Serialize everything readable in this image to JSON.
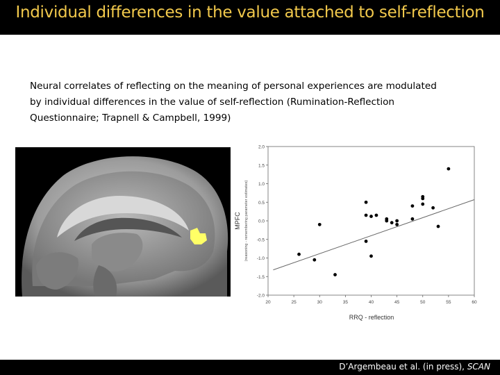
{
  "slide": {
    "title": "Individual differences in the value attached to self-reflection",
    "body_lines": [
      "Neural correlates of reflecting on the meaning of personal experiences are modulated",
      "by individual differences in the value of self-reflection  (Rumination-Reflection",
      "Questionnaire; Trapnell & Campbell, 1999)"
    ],
    "citation_main": "D’Argembeau et al. (in press), ",
    "citation_journal": "SCAN",
    "colors": {
      "title": "#f2c94c",
      "bars": "#000000",
      "activation": "#ffff66"
    }
  },
  "brain_image": {
    "icon": "sagittal-mri-brain-slice",
    "highlight": "mPFC activation cluster"
  },
  "chart_data": {
    "type": "scatter",
    "xlabel": "RRQ - reflection",
    "ylabel": "MPFC",
    "ylabel_sub": "(reasoning - remembering parameter estimates)",
    "xlim": [
      20,
      60
    ],
    "ylim": [
      -2.0,
      2.0
    ],
    "xticks": [
      "20",
      "25",
      "30",
      "35",
      "40",
      "45",
      "50",
      "55",
      "60"
    ],
    "yticks": [
      "-2.0",
      "-1.5",
      "-1.0",
      "-0.5",
      "0.0",
      "0.5",
      "1.0",
      "1.5",
      "2.0"
    ],
    "grid": false,
    "points": [
      {
        "x": 26,
        "y": -0.9
      },
      {
        "x": 29,
        "y": -1.05
      },
      {
        "x": 30,
        "y": -0.1
      },
      {
        "x": 33,
        "y": -1.45
      },
      {
        "x": 39,
        "y": 0.5
      },
      {
        "x": 39,
        "y": 0.15
      },
      {
        "x": 39,
        "y": -0.55
      },
      {
        "x": 40,
        "y": 0.12
      },
      {
        "x": 40,
        "y": -0.95
      },
      {
        "x": 41,
        "y": 0.15
      },
      {
        "x": 43,
        "y": 0.05
      },
      {
        "x": 43,
        "y": 0.0
      },
      {
        "x": 44,
        "y": -0.05
      },
      {
        "x": 45,
        "y": 0.0
      },
      {
        "x": 45,
        "y": -0.1
      },
      {
        "x": 48,
        "y": 0.4
      },
      {
        "x": 48,
        "y": 0.05
      },
      {
        "x": 50,
        "y": 0.65
      },
      {
        "x": 50,
        "y": 0.6
      },
      {
        "x": 50,
        "y": 0.45
      },
      {
        "x": 52,
        "y": 0.35
      },
      {
        "x": 53,
        "y": -0.15
      },
      {
        "x": 55,
        "y": 1.4
      }
    ],
    "trendline": {
      "x": [
        21,
        60
      ],
      "y": [
        -1.32,
        0.57
      ]
    }
  }
}
